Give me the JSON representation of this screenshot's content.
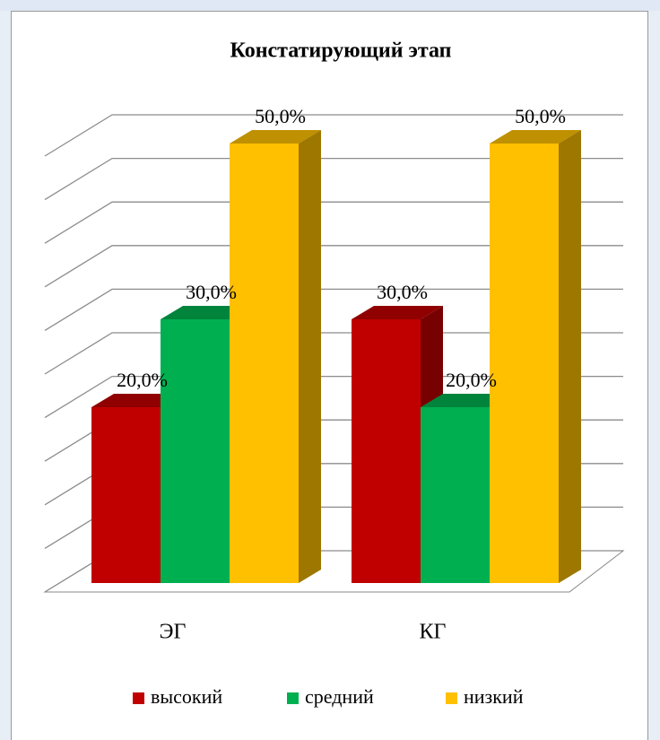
{
  "chart_data": {
    "type": "bar",
    "title": "Констатирующий этап",
    "categories": [
      "ЭГ",
      "КГ"
    ],
    "series": [
      {
        "name": "высокий",
        "color": "#c00000",
        "values": [
          20,
          30
        ],
        "value_labels": [
          "20,0%",
          "30,0%"
        ]
      },
      {
        "name": "средний",
        "color": "#00b050",
        "values": [
          30,
          20
        ],
        "value_labels": [
          "30,0%",
          "20,0%"
        ]
      },
      {
        "name": "низкий",
        "color": "#ffc000",
        "values": [
          50,
          50
        ],
        "value_labels": [
          "50,0%",
          "50,0%"
        ]
      }
    ],
    "ylim": [
      0,
      50
    ],
    "yticks": [
      0,
      5,
      10,
      15,
      20,
      25,
      30,
      35,
      40,
      45,
      50
    ],
    "grid": true,
    "legend": "bottom"
  }
}
